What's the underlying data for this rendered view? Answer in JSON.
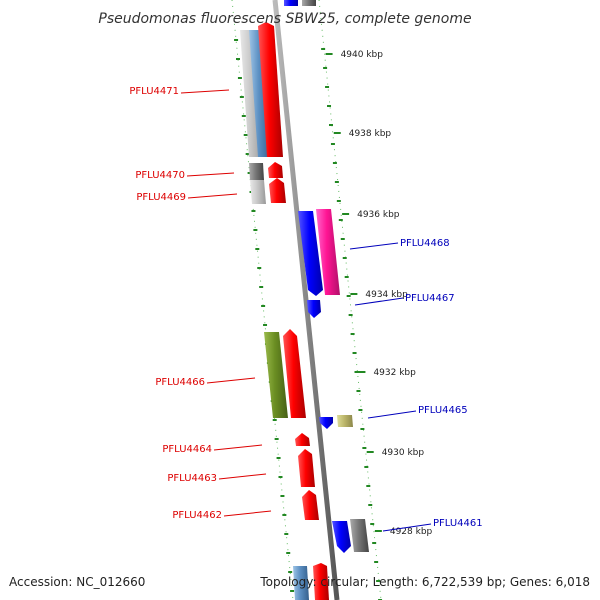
{
  "title": "Pseudomonas fluorescens SBW25, complete genome",
  "accession": "Accession: NC_012660",
  "topology": "Topology: circular; Length: 6,722,539 bp; Genes: 6,018",
  "colors": {
    "forward_label": "#dd0000",
    "reverse_label": "#0000bb",
    "backbone": "#888888",
    "tick": "#228822"
  },
  "scale_labels": [
    "4940 kbp",
    "4938 kbp",
    "4936 kbp",
    "4934 kbp",
    "4932 kbp",
    "4930 kbp",
    "4928 kbp"
  ],
  "genes": [
    {
      "label": "PFLU4471",
      "strand": "forward"
    },
    {
      "label": "PFLU4470",
      "strand": "forward"
    },
    {
      "label": "PFLU4469",
      "strand": "forward"
    },
    {
      "label": "PFLU4468",
      "strand": "reverse"
    },
    {
      "label": "PFLU4467",
      "strand": "reverse"
    },
    {
      "label": "PFLU4466",
      "strand": "forward"
    },
    {
      "label": "PFLU4465",
      "strand": "reverse"
    },
    {
      "label": "PFLU4464",
      "strand": "forward"
    },
    {
      "label": "PFLU4463",
      "strand": "forward"
    },
    {
      "label": "PFLU4462",
      "strand": "forward"
    },
    {
      "label": "PFLU4461",
      "strand": "reverse"
    }
  ]
}
